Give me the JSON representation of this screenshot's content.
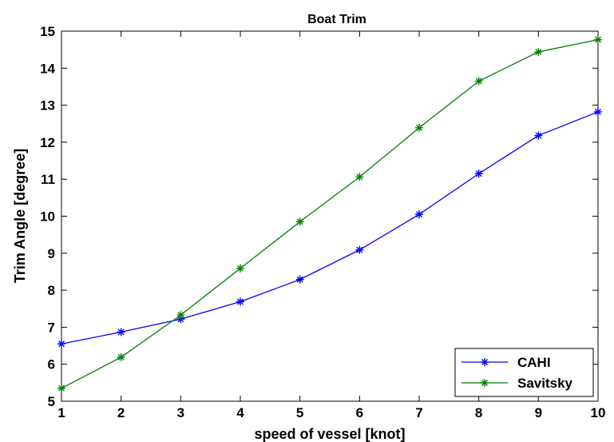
{
  "chart_data": {
    "type": "line",
    "title": "Boat Trim",
    "xlabel": "speed of vessel [knot]",
    "ylabel": "Trim Angle [degree]",
    "xlim": [
      1,
      10
    ],
    "ylim": [
      5,
      15
    ],
    "xticks": [
      1,
      2,
      3,
      4,
      5,
      6,
      7,
      8,
      9,
      10
    ],
    "yticks": [
      5,
      6,
      7,
      8,
      9,
      10,
      11,
      12,
      13,
      14,
      15
    ],
    "grid": false,
    "legend_position": "bottom-right",
    "x": [
      1,
      2,
      3,
      4,
      5,
      6,
      7,
      8,
      9,
      10
    ],
    "series": [
      {
        "name": "CAHI",
        "color": "#0000ff",
        "marker": "*",
        "values": [
          6.55,
          6.87,
          7.22,
          7.69,
          8.29,
          9.09,
          10.05,
          11.15,
          12.18,
          12.82
        ]
      },
      {
        "name": "Savitsky",
        "color": "#008000",
        "marker": "*",
        "values": [
          5.35,
          6.19,
          7.33,
          8.59,
          9.85,
          11.06,
          12.39,
          13.65,
          14.44,
          14.77
        ]
      }
    ]
  }
}
